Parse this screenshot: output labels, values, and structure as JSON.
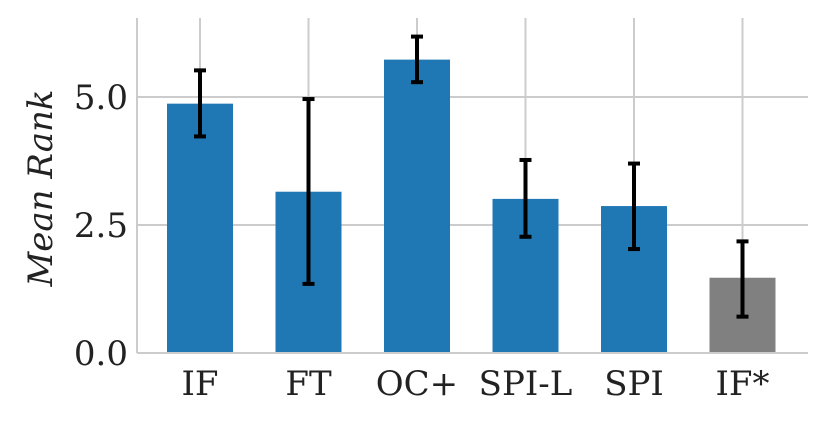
{
  "chart_data": {
    "type": "bar",
    "title": "",
    "xlabel": "",
    "ylabel": "Mean Rank",
    "categories": [
      "IF",
      "FT",
      "OC+",
      "SPI-L",
      "SPI",
      "IF*"
    ],
    "values": [
      4.87,
      3.15,
      5.73,
      3.01,
      2.87,
      1.47
    ],
    "error_low": [
      4.23,
      1.35,
      5.29,
      2.27,
      2.03,
      0.71
    ],
    "error_high": [
      5.52,
      4.96,
      6.18,
      3.77,
      3.7,
      2.18
    ],
    "colors": [
      "#1f77b4",
      "#1f77b4",
      "#1f77b4",
      "#1f77b4",
      "#1f77b4",
      "#808080"
    ],
    "yticks": [
      0.0,
      2.5,
      5.0
    ],
    "ytick_labels": [
      "0.0",
      "2.5",
      "5.0"
    ],
    "ylim": [
      0,
      6.5
    ],
    "grid": true,
    "legend": "none"
  }
}
